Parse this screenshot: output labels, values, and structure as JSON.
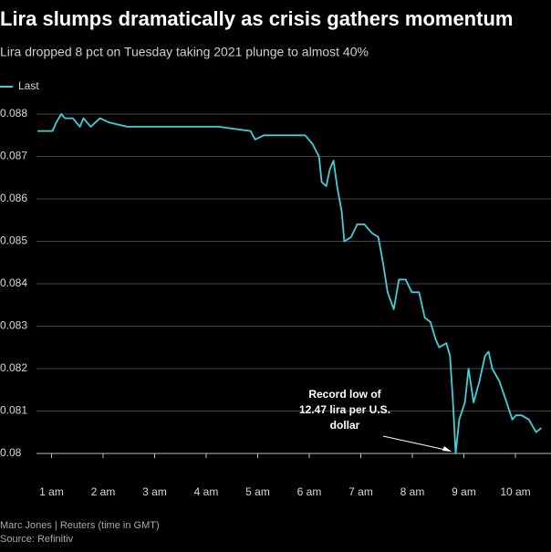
{
  "chart_data": {
    "type": "line",
    "title": "Lira slumps dramatically as crisis gathers momentum",
    "subtitle": "Lira dropped 8 pct on Tuesday taking 2021 plunge to almost 40%",
    "annotation": [
      "Record low of",
      "12.47 lira per U.S.",
      "dollar"
    ],
    "footer": [
      "Marc Jones | Reuters (time in GMT)",
      "Source: Refinitiv"
    ],
    "legend": "top-left",
    "grid": true,
    "x": [
      0.73,
      1.02,
      1.09,
      1.19,
      1.26,
      1.41,
      1.55,
      1.62,
      1.76,
      1.94,
      2.12,
      2.47,
      2.82,
      3.53,
      4.24,
      4.86,
      4.95,
      5.12,
      5.3,
      5.65,
      5.92,
      6.06,
      6.19,
      6.24,
      6.33,
      6.4,
      6.47,
      6.54,
      6.63,
      6.68,
      6.81,
      6.93,
      7.07,
      7.21,
      7.34,
      7.43,
      7.52,
      7.64,
      7.74,
      7.87,
      7.99,
      8.13,
      8.24,
      8.35,
      8.45,
      8.52,
      8.66,
      8.73,
      8.79,
      8.84,
      8.91,
      9.02,
      9.09,
      9.19,
      9.3,
      9.41,
      9.48,
      9.55,
      9.69,
      9.83,
      9.94,
      10.01,
      10.12,
      10.26,
      10.4,
      10.5
    ],
    "series": [
      {
        "name": "Last",
        "color": "#3fd0dc",
        "values": [
          0.0876,
          0.0876,
          0.0878,
          0.088,
          0.0879,
          0.0879,
          0.0877,
          0.0879,
          0.0877,
          0.0879,
          0.0878,
          0.0877,
          0.0877,
          0.0877,
          0.0877,
          0.0876,
          0.0874,
          0.0875,
          0.0875,
          0.0875,
          0.0875,
          0.0873,
          0.087,
          0.0864,
          0.0863,
          0.0867,
          0.0869,
          0.0863,
          0.0857,
          0.085,
          0.0851,
          0.0854,
          0.0854,
          0.0852,
          0.0851,
          0.0845,
          0.0838,
          0.0834,
          0.0841,
          0.0841,
          0.0838,
          0.0838,
          0.0832,
          0.0831,
          0.0827,
          0.0825,
          0.0826,
          0.0823,
          0.0812,
          0.08,
          0.0808,
          0.0812,
          0.082,
          0.0812,
          0.0817,
          0.0823,
          0.0824,
          0.082,
          0.0817,
          0.0812,
          0.0808,
          0.0809,
          0.0809,
          0.0808,
          0.0805,
          0.0806
        ]
      }
    ],
    "xlim": [
      0,
      10.69
    ],
    "xticks": [
      {
        "value": 1,
        "label": "1 am"
      },
      {
        "value": 2,
        "label": "2 am"
      },
      {
        "value": 3,
        "label": "3 am"
      },
      {
        "value": 4,
        "label": "4 am"
      },
      {
        "value": 5,
        "label": "5 am"
      },
      {
        "value": 6,
        "label": "6 am"
      },
      {
        "value": 7,
        "label": "7 am"
      },
      {
        "value": 8,
        "label": "8 am"
      },
      {
        "value": 9,
        "label": "9 am"
      },
      {
        "value": 10,
        "label": "10 am"
      }
    ],
    "ylim": [
      0.08,
      0.088
    ],
    "yticks": [
      0.08,
      0.081,
      0.082,
      0.083,
      0.084,
      0.085,
      0.086,
      0.087,
      0.088
    ]
  }
}
